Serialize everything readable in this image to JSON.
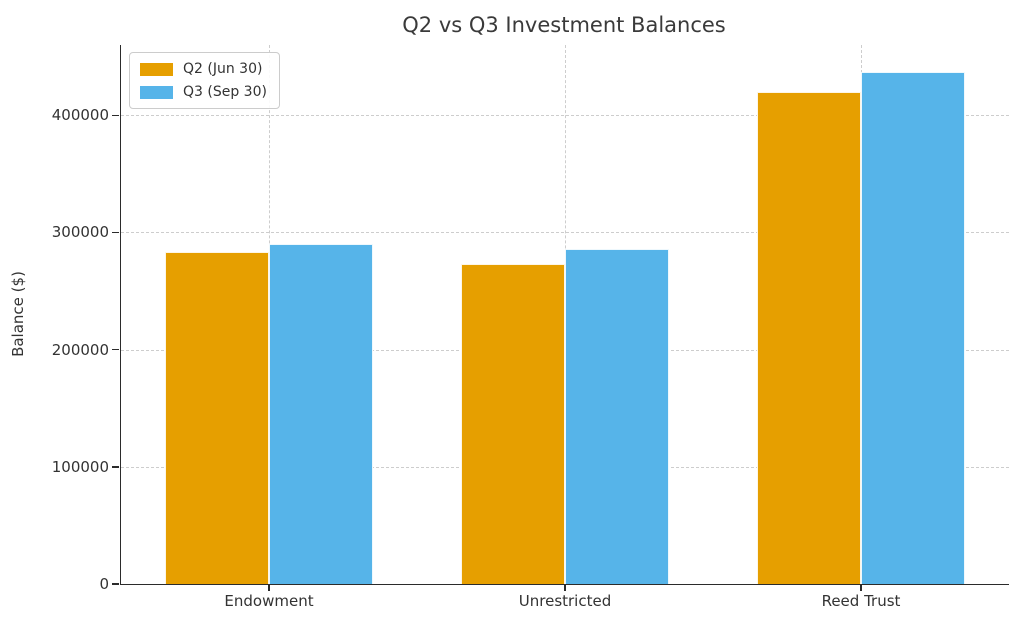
{
  "chart_data": {
    "type": "bar",
    "title": "Q2 vs Q3 Investment Balances",
    "xlabel": "",
    "ylabel": "Balance ($)",
    "categories": [
      "Endowment",
      "Unrestricted",
      "Reed Trust"
    ],
    "series": [
      {
        "name": "Q2 (Jun 30)",
        "color": "#E69F00",
        "values": [
          283500,
          273000,
          420000
        ]
      },
      {
        "name": "Q3 (Sep 30)",
        "color": "#56B4E9",
        "values": [
          290000,
          286000,
          437000
        ]
      }
    ],
    "ylim": [
      0,
      460000
    ],
    "yticks": [
      0,
      100000,
      200000,
      300000,
      400000
    ],
    "grid": true,
    "grid_style": "dashed",
    "legend_position": "upper left",
    "spines": [
      "left",
      "bottom"
    ]
  }
}
